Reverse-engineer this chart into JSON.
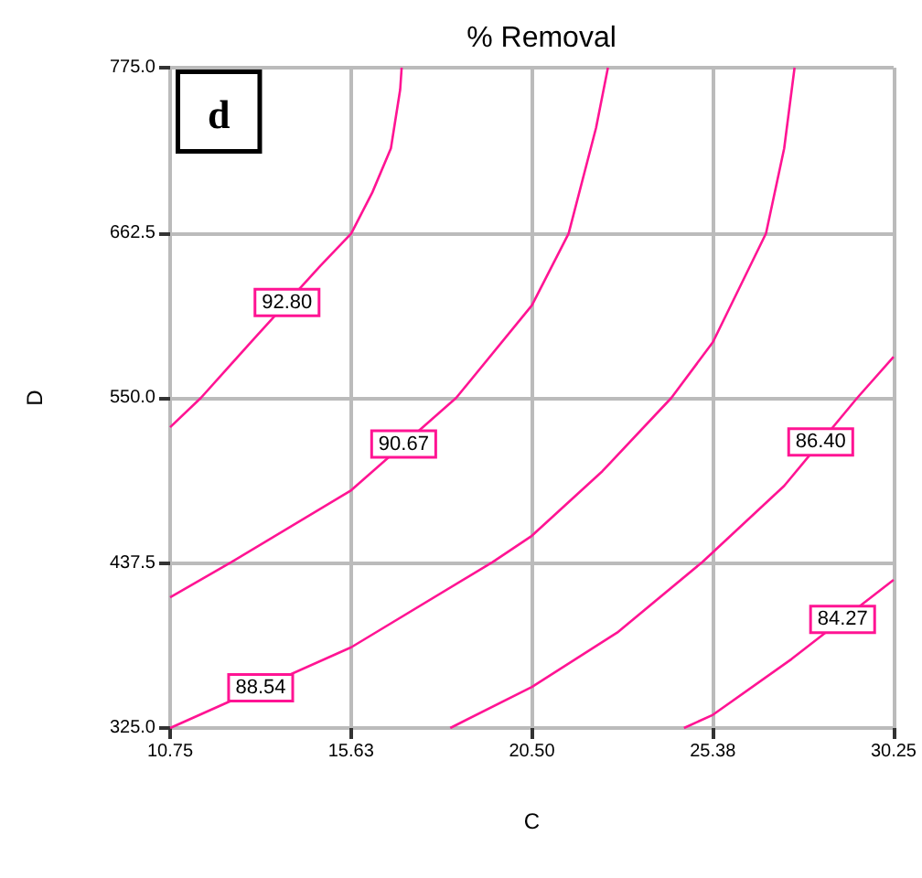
{
  "chart_data": {
    "type": "line",
    "title": "% Removal",
    "xlabel": "C",
    "ylabel": "D",
    "annotations": [
      "d"
    ],
    "xlim": [
      10.75,
      30.25
    ],
    "xticks": [
      10.75,
      {
        "value": 15.625,
        "label": "15.63"
      },
      {
        "value": 20.5,
        "label": "20.50"
      },
      {
        "value": 25.375,
        "label": "25.38"
      },
      30.25
    ],
    "ylim": [
      325,
      775
    ],
    "yticks": [
      {
        "value": 325,
        "label": "325.0"
      },
      437.5,
      {
        "value": 550,
        "label": "550.0"
      },
      662.5,
      {
        "value": 775,
        "label": "775.0"
      }
    ],
    "grid": true,
    "legend": false,
    "marker": "none",
    "line_style": "solid",
    "series": [
      {
        "name": "92.80",
        "color": "#ff1493",
        "x": [
          10.75,
          11.58,
          13.0,
          14.8,
          15.63,
          16.2,
          16.7,
          16.95,
          16.99
        ],
        "values": [
          530,
          550,
          590,
          640,
          662,
          690,
          720,
          760,
          775
        ]
      },
      {
        "name": "90.67",
        "color": "#ff1493",
        "x": [
          10.75,
          12.4,
          15.63,
          18.46,
          20.5,
          21.49,
          22.23,
          22.55
        ],
        "values": [
          414,
          438,
          487,
          550,
          613,
          662,
          734,
          775
        ]
      },
      {
        "name": "88.54",
        "color": "#ff1493",
        "x": [
          10.75,
          15.63,
          19.44,
          20.5,
          22.4,
          24.26,
          25.38,
          26.81,
          27.3,
          27.58
        ],
        "values": [
          325,
          380,
          438,
          456,
          500,
          550,
          588,
          662,
          720,
          775
        ]
      },
      {
        "name": "86.40",
        "color": "#ff1493",
        "x": [
          18.3,
          20.5,
          22.8,
          25.09,
          27.3,
          29.27,
          30.25
        ],
        "values": [
          325,
          353,
          390,
          438,
          490,
          550,
          578
        ]
      },
      {
        "name": "84.27",
        "color": "#ff1493",
        "x": [
          24.6,
          25.38,
          27.5,
          30.25
        ],
        "values": [
          325,
          334,
          372,
          426
        ]
      }
    ]
  }
}
